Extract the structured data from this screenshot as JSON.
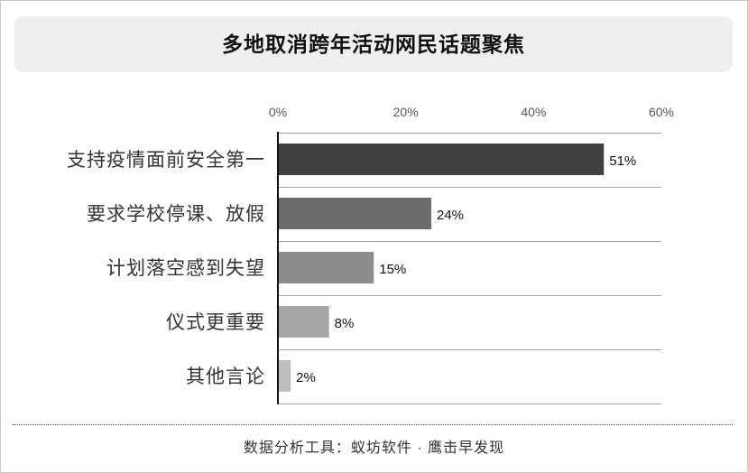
{
  "chart_data": {
    "type": "bar",
    "orientation": "horizontal",
    "title": "多地取消跨年活动网民话题聚焦",
    "categories": [
      "支持疫情面前安全第一",
      "要求学校停课、放假",
      "计划落空感到失望",
      "仪式更重要",
      "其他言论"
    ],
    "values": [
      51,
      24,
      15,
      8,
      2
    ],
    "value_labels": [
      "51%",
      "24%",
      "15%",
      "8%",
      "2%"
    ],
    "xlim": [
      0,
      60
    ],
    "xticks": [
      0,
      20,
      40,
      60
    ],
    "xtick_labels": [
      "0%",
      "20%",
      "40%",
      "60%"
    ],
    "axis_position": "top",
    "grid": true,
    "bar_colors": [
      "#404040",
      "#6b6b6b",
      "#8c8c8c",
      "#a5a5a5",
      "#bebebe"
    ]
  },
  "footer": {
    "source": "数据分析工具：蚁坊软件 · 鹰击早发现"
  }
}
